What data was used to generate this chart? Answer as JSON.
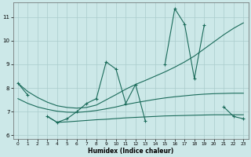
{
  "xlabel": "Humidex (Indice chaleur)",
  "line_main": [
    8.2,
    7.7,
    null,
    6.8,
    6.55,
    6.7,
    7.0,
    7.35,
    7.55,
    9.1,
    8.8,
    7.35,
    8.15,
    6.6,
    null,
    9.0,
    11.35,
    10.7,
    8.4,
    10.65,
    null,
    7.2,
    6.8,
    6.7
  ],
  "line_smooth_upper": [
    8.2,
    7.85,
    7.6,
    7.4,
    7.25,
    7.18,
    7.15,
    7.18,
    7.28,
    7.5,
    7.72,
    7.95,
    8.15,
    8.32,
    8.5,
    8.68,
    8.88,
    9.1,
    9.35,
    9.65,
    9.95,
    10.25,
    10.52,
    10.75
  ],
  "line_smooth_mid": [
    7.55,
    7.35,
    7.2,
    7.1,
    7.02,
    6.98,
    6.97,
    7.0,
    7.05,
    7.12,
    7.2,
    7.3,
    7.38,
    7.45,
    7.52,
    7.58,
    7.63,
    7.67,
    7.71,
    7.74,
    7.76,
    7.77,
    7.78,
    7.78
  ],
  "line_bottom": [
    null,
    null,
    null,
    6.8,
    6.55,
    6.57,
    6.6,
    6.63,
    6.66,
    6.68,
    6.71,
    6.74,
    6.76,
    6.78,
    6.8,
    6.82,
    6.83,
    6.84,
    6.85,
    6.86,
    6.87,
    6.87,
    6.87,
    6.87
  ],
  "ylim": [
    5.85,
    11.6
  ],
  "xlim": [
    -0.5,
    23.5
  ],
  "yticks": [
    6,
    7,
    8,
    9,
    10,
    11
  ],
  "xticks": [
    0,
    1,
    2,
    3,
    4,
    5,
    6,
    7,
    8,
    9,
    10,
    11,
    12,
    13,
    14,
    15,
    16,
    17,
    18,
    19,
    20,
    21,
    22,
    23
  ],
  "bg_color": "#cce8e8",
  "grid_color": "#aacccc",
  "line_color": "#1a6b5a",
  "figsize": [
    3.2,
    2.0
  ],
  "dpi": 100
}
